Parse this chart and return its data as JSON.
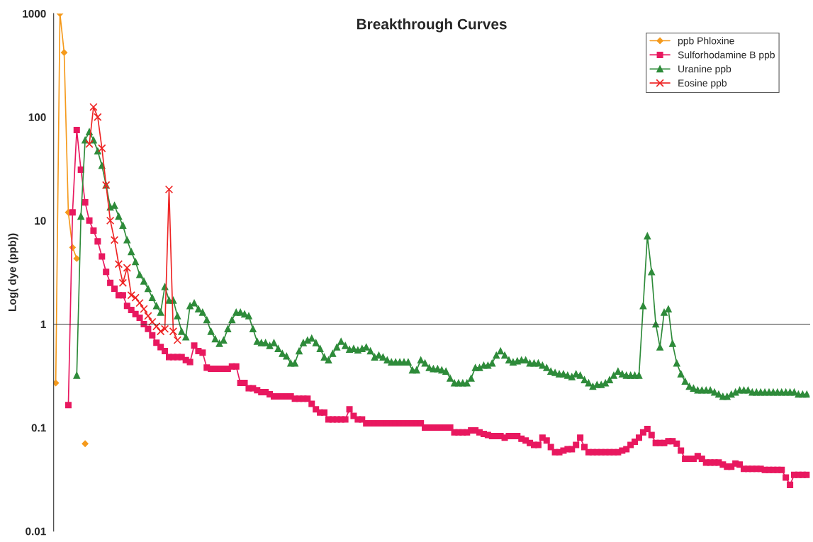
{
  "chart_data": {
    "type": "line",
    "title": "Breakthrough Curves",
    "ylabel": "Log( dye (ppb))",
    "categories": [
      null,
      null,
      null,
      null,
      null,
      null,
      null,
      null,
      null,
      null,
      null,
      null,
      null,
      null,
      null,
      null,
      null,
      null,
      null,
      null,
      null,
      null,
      null,
      null,
      null,
      null,
      null,
      null,
      null,
      null,
      null,
      null,
      null,
      null,
      null,
      null,
      null,
      null,
      null,
      null,
      null,
      null,
      null,
      null,
      null,
      null,
      null,
      null,
      null,
      null,
      null,
      null,
      null,
      null,
      null,
      null,
      null,
      null,
      null,
      null,
      null,
      null,
      null,
      null,
      null,
      null,
      null,
      null,
      null,
      null,
      null,
      null,
      null,
      null,
      null,
      null,
      null,
      null,
      null,
      null,
      null,
      null,
      null,
      null,
      null,
      null,
      null,
      null,
      null,
      null,
      null,
      null,
      null,
      null,
      null,
      null,
      null,
      null,
      null,
      null,
      null,
      null,
      null,
      null,
      null,
      null,
      null,
      null,
      null,
      null,
      null,
      null,
      null,
      null,
      null,
      null,
      null,
      null,
      null,
      null,
      null,
      null,
      null,
      null,
      null,
      null,
      null,
      null,
      null,
      null,
      null,
      null,
      null,
      null,
      null,
      null,
      null,
      null,
      null,
      null,
      null,
      null,
      null,
      null,
      null,
      null,
      null,
      null,
      null,
      null,
      null,
      null,
      null,
      null,
      null,
      null,
      null,
      null,
      null,
      null,
      null,
      null,
      null,
      null,
      null,
      null,
      null,
      null,
      null,
      null,
      null,
      null,
      null,
      null,
      null,
      null,
      null,
      null,
      null,
      null
    ],
    "series": [
      {
        "name": "ppb Phloxine",
        "color": "#f59a1c",
        "marker": "diamond",
        "values": [
          0.27,
          1000,
          420,
          12,
          5.5,
          4.3,
          null,
          0.07,
          null,
          null,
          null,
          null,
          null,
          null,
          null,
          null,
          null,
          null,
          null,
          null,
          null,
          null,
          null,
          null,
          null,
          null,
          null,
          null,
          null,
          null,
          null,
          null,
          null,
          null,
          null,
          null,
          null,
          null,
          null,
          null,
          null,
          null,
          null,
          null,
          null,
          null,
          null,
          null,
          null,
          null,
          null,
          null,
          null,
          null,
          null,
          null,
          null,
          null,
          null,
          null,
          null,
          null,
          null,
          null,
          null,
          null,
          null,
          null,
          null,
          null,
          null,
          null,
          null,
          null,
          null,
          null,
          null,
          null,
          null,
          null,
          null,
          null,
          null,
          null,
          null,
          null,
          null,
          null,
          null,
          null,
          null,
          null,
          null,
          null,
          null,
          null,
          null,
          null,
          null,
          null,
          null,
          null,
          null,
          null,
          null,
          null,
          null,
          null,
          null,
          null,
          null,
          null,
          null,
          null,
          null,
          null,
          null,
          null,
          null,
          null,
          null,
          null,
          null,
          null,
          null,
          null,
          null,
          null,
          null,
          null,
          null,
          null,
          null,
          null,
          null,
          null,
          null,
          null,
          null,
          null,
          null,
          null,
          null,
          null,
          null,
          null,
          null,
          null,
          null,
          null,
          null,
          null,
          null,
          null,
          null,
          null,
          null,
          null,
          null,
          null,
          null,
          null,
          null,
          null,
          null,
          null,
          null,
          null,
          null,
          null,
          null,
          null,
          null,
          null,
          null,
          null,
          null,
          null,
          null,
          null
        ]
      },
      {
        "name": "Sulforhodamine B ppb",
        "color": "#e8185f",
        "marker": "square",
        "values": [
          null,
          null,
          null,
          0.165,
          12,
          75,
          31,
          15,
          10,
          8,
          6.3,
          4.5,
          3.2,
          2.5,
          2.2,
          1.9,
          1.9,
          1.5,
          1.37,
          1.25,
          1.15,
          1.0,
          0.9,
          0.78,
          0.66,
          0.6,
          0.55,
          0.48,
          0.48,
          0.48,
          0.48,
          0.45,
          0.43,
          0.62,
          0.55,
          0.53,
          0.38,
          0.37,
          0.37,
          0.37,
          0.37,
          0.37,
          0.39,
          0.39,
          0.27,
          0.27,
          0.24,
          0.24,
          0.23,
          0.22,
          0.22,
          0.21,
          0.2,
          0.2,
          0.2,
          0.2,
          0.2,
          0.19,
          0.19,
          0.19,
          0.19,
          0.17,
          0.15,
          0.14,
          0.14,
          0.12,
          0.12,
          0.12,
          0.12,
          0.12,
          0.15,
          0.13,
          0.12,
          0.12,
          0.11,
          0.11,
          0.11,
          0.11,
          0.11,
          0.11,
          0.11,
          0.11,
          0.11,
          0.11,
          0.11,
          0.11,
          0.11,
          0.11,
          0.1,
          0.1,
          0.1,
          0.1,
          0.1,
          0.1,
          0.1,
          0.09,
          0.09,
          0.09,
          0.09,
          0.094,
          0.094,
          0.09,
          0.087,
          0.085,
          0.083,
          0.083,
          0.083,
          0.08,
          0.083,
          0.083,
          0.083,
          0.078,
          0.075,
          0.071,
          0.068,
          0.068,
          0.08,
          0.075,
          0.065,
          0.058,
          0.058,
          0.06,
          0.062,
          0.062,
          0.068,
          0.08,
          0.065,
          0.058,
          0.058,
          0.058,
          0.058,
          0.058,
          0.058,
          0.058,
          0.058,
          0.06,
          0.062,
          0.068,
          0.073,
          0.08,
          0.09,
          0.097,
          0.085,
          0.071,
          0.071,
          0.071,
          0.074,
          0.074,
          0.07,
          0.06,
          0.05,
          0.05,
          0.05,
          0.053,
          0.05,
          0.046,
          0.046,
          0.046,
          0.046,
          0.044,
          0.042,
          0.042,
          0.045,
          0.044,
          0.04,
          0.04,
          0.04,
          0.04,
          0.04,
          0.039,
          0.039,
          0.039,
          0.039,
          0.039,
          0.033,
          0.028,
          0.035,
          0.035,
          0.035,
          0.035
        ]
      },
      {
        "name": "Uranine ppb",
        "color": "#2e8b3a",
        "marker": "triangle",
        "values": [
          null,
          null,
          null,
          null,
          null,
          0.32,
          11,
          60,
          72,
          60,
          47,
          34,
          22,
          13.5,
          14,
          11,
          9,
          6.5,
          5,
          4,
          3,
          2.6,
          2.2,
          1.8,
          1.5,
          1.3,
          2.3,
          1.7,
          1.7,
          1.2,
          0.85,
          0.75,
          1.5,
          1.6,
          1.4,
          1.3,
          1.1,
          0.85,
          0.72,
          0.65,
          0.7,
          0.9,
          1.1,
          1.3,
          1.3,
          1.25,
          1.2,
          0.9,
          0.68,
          0.66,
          0.66,
          0.62,
          0.66,
          0.58,
          0.52,
          0.49,
          0.42,
          0.42,
          0.55,
          0.66,
          0.7,
          0.73,
          0.66,
          0.58,
          0.48,
          0.45,
          0.52,
          0.6,
          0.68,
          0.62,
          0.57,
          0.58,
          0.56,
          0.58,
          0.6,
          0.55,
          0.48,
          0.5,
          0.48,
          0.45,
          0.43,
          0.43,
          0.43,
          0.43,
          0.43,
          0.36,
          0.36,
          0.45,
          0.42,
          0.38,
          0.37,
          0.37,
          0.36,
          0.35,
          0.3,
          0.27,
          0.27,
          0.27,
          0.27,
          0.3,
          0.38,
          0.38,
          0.4,
          0.4,
          0.42,
          0.5,
          0.55,
          0.5,
          0.45,
          0.43,
          0.44,
          0.45,
          0.45,
          0.42,
          0.42,
          0.42,
          0.4,
          0.38,
          0.35,
          0.34,
          0.33,
          0.33,
          0.32,
          0.31,
          0.33,
          0.32,
          0.29,
          0.27,
          0.25,
          0.26,
          0.26,
          0.27,
          0.29,
          0.32,
          0.35,
          0.33,
          0.32,
          0.32,
          0.32,
          0.32,
          1.5,
          7.1,
          3.2,
          1.0,
          0.6,
          1.3,
          1.4,
          0.65,
          0.42,
          0.33,
          0.28,
          0.25,
          0.24,
          0.23,
          0.23,
          0.23,
          0.23,
          0.22,
          0.21,
          0.2,
          0.2,
          0.21,
          0.22,
          0.23,
          0.23,
          0.23,
          0.22,
          0.22,
          0.22,
          0.22,
          0.22,
          0.22,
          0.22,
          0.22,
          0.22,
          0.22,
          0.22,
          0.21,
          0.21,
          0.21
        ]
      },
      {
        "name": "Eosine ppb",
        "color": "#ee2424",
        "marker": "cross",
        "values": [
          null,
          null,
          null,
          null,
          null,
          null,
          null,
          null,
          55,
          125,
          100,
          50,
          22,
          10,
          6.5,
          3.8,
          2.5,
          3.5,
          1.9,
          1.8,
          1.6,
          1.4,
          1.2,
          1.05,
          0.95,
          0.85,
          0.9,
          20,
          0.85,
          0.7,
          null,
          null,
          null,
          null,
          null,
          null,
          null,
          null,
          null,
          null,
          null,
          null,
          null,
          null,
          null,
          null,
          null,
          null,
          null,
          null,
          null,
          null,
          null,
          null,
          null,
          null,
          null,
          null,
          null,
          null,
          null,
          null,
          null,
          null,
          null,
          null,
          null,
          null,
          null,
          null,
          null,
          null,
          null,
          null,
          null,
          null,
          null,
          null,
          null,
          null,
          null,
          null,
          null,
          null,
          null,
          null,
          null,
          null,
          null,
          null,
          null,
          null,
          null,
          null,
          null,
          null,
          null,
          null,
          null,
          null,
          null,
          null,
          null,
          null,
          null,
          null,
          null,
          null,
          null,
          null,
          null,
          null,
          null,
          null,
          null,
          null,
          null,
          null,
          null,
          null,
          null,
          null,
          null,
          null,
          null,
          null,
          null,
          null,
          null,
          null,
          null,
          null,
          null,
          null,
          null,
          null,
          null,
          null,
          null,
          null,
          null,
          null,
          null,
          null,
          null,
          null,
          null,
          null,
          null,
          null,
          null,
          null,
          null,
          null,
          null,
          null,
          null,
          null,
          null,
          null,
          null,
          null,
          null,
          null,
          null,
          null,
          null,
          null,
          null,
          null,
          null,
          null,
          null,
          null,
          null,
          null,
          null,
          null,
          null,
          null
        ]
      }
    ],
    "log": "y",
    "ylim": [
      0.01,
      1000
    ],
    "yticks": [
      0.01,
      0.1,
      1,
      10,
      100,
      1000
    ],
    "ref_lines": [
      {
        "axis": "y",
        "value": 1
      }
    ],
    "tick_labels": "y",
    "legend": "top right",
    "grid": false
  }
}
